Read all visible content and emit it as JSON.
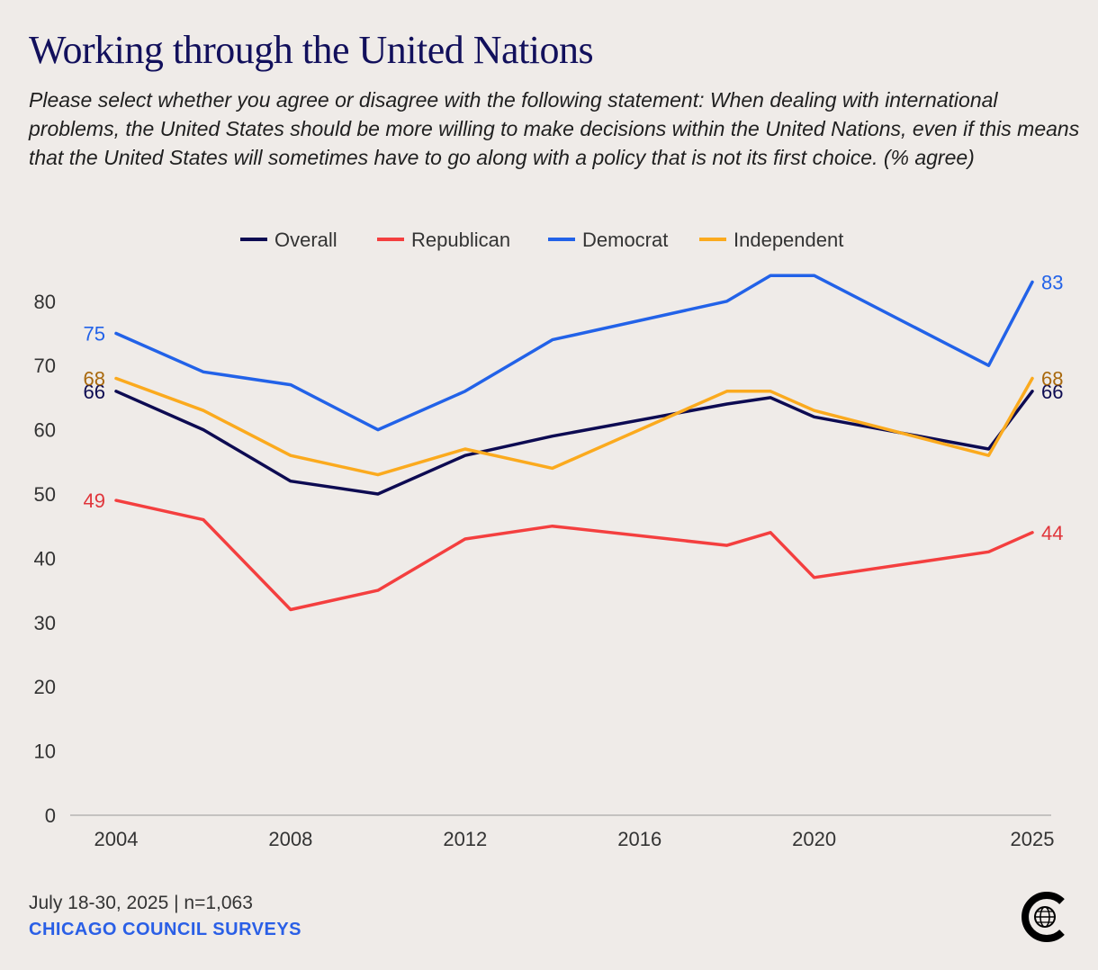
{
  "title": "Working through the United Nations",
  "subtitle": "Please select whether you agree or disagree with the following statement: When dealing with international problems, the United States should be more willing to make decisions within the United Nations, even if this means that the United States will sometimes have to go along with a policy that is not its first choice. (% agree)",
  "footer": {
    "date": "July 18-30, 2025 | n=1,063",
    "source": "CHICAGO COUNCIL SURVEYS"
  },
  "chart_data": {
    "type": "line",
    "x": [
      2004,
      2006,
      2008,
      2010,
      2012,
      2014,
      2018,
      2019,
      2020,
      2024,
      2025
    ],
    "xticks": [
      "2004",
      "2008",
      "2012",
      "2016",
      "2020",
      "2025"
    ],
    "xlim": [
      2004,
      2025
    ],
    "ylim": [
      0,
      85
    ],
    "yticks": [
      0,
      10,
      20,
      30,
      40,
      50,
      60,
      70,
      80
    ],
    "grid": false,
    "legend_position": "top-center",
    "series": [
      {
        "name": "Overall",
        "color": "#0d0b52",
        "label_color": "#0d0b52",
        "values": [
          66,
          60,
          52,
          50,
          56,
          59,
          64,
          65,
          62,
          57,
          66
        ]
      },
      {
        "name": "Republican",
        "color": "#f43f3f",
        "label_color": "#e0353b",
        "values": [
          49,
          46,
          32,
          35,
          43,
          45,
          42,
          44,
          37,
          41,
          44
        ]
      },
      {
        "name": "Democrat",
        "color": "#2262e8",
        "label_color": "#2262e8",
        "values": [
          75,
          69,
          67,
          60,
          66,
          74,
          80,
          84,
          84,
          70,
          83
        ]
      },
      {
        "name": "Independent",
        "color": "#fbaa1e",
        "label_color": "#a8680c",
        "values": [
          68,
          63,
          56,
          53,
          57,
          54,
          66,
          66,
          63,
          56,
          68
        ]
      }
    ]
  }
}
